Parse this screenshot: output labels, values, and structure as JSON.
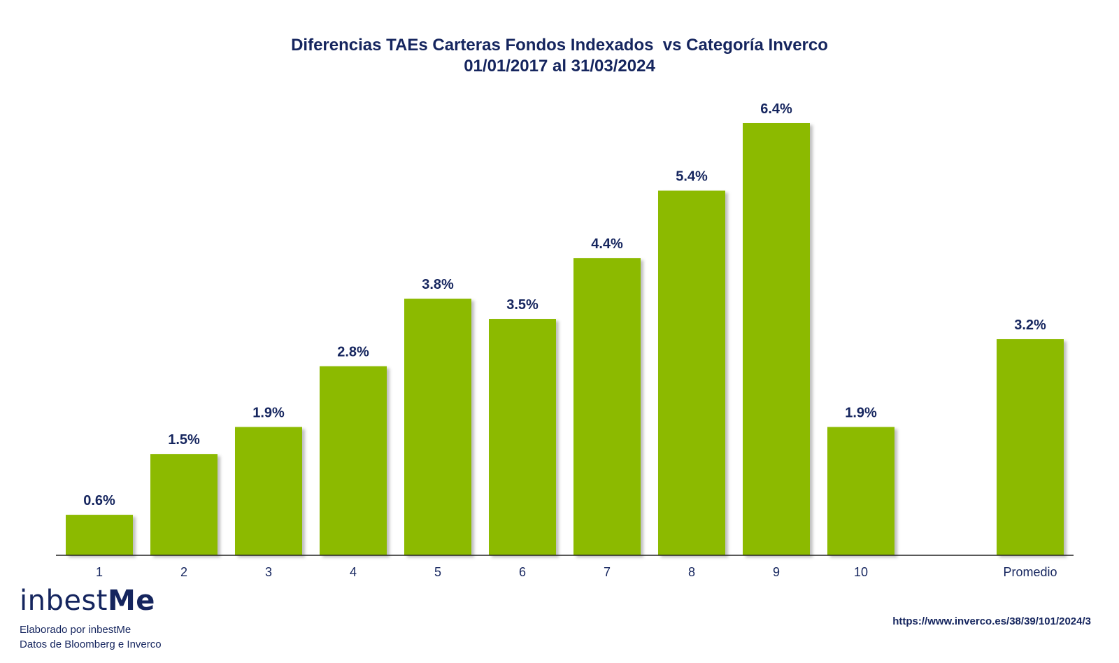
{
  "chart_data": {
    "type": "bar",
    "title": "Diferencias TAEs Carteras Fondos Indexados  vs Categoría Inverco",
    "subtitle": "01/01/2017 al 31/03/2024",
    "categories": [
      "1",
      "2",
      "3",
      "4",
      "5",
      "6",
      "7",
      "8",
      "9",
      "10",
      "Promedio"
    ],
    "values": [
      0.6,
      1.5,
      1.9,
      2.8,
      3.8,
      3.5,
      4.4,
      5.4,
      6.4,
      1.9,
      3.2
    ],
    "data_labels": [
      "0.6%",
      "1.5%",
      "1.9%",
      "2.8%",
      "3.8%",
      "3.5%",
      "4.4%",
      "5.4%",
      "6.4%",
      "1.9%",
      "3.2%"
    ],
    "xlabel": "",
    "ylabel": "",
    "ylim": [
      0,
      6.4
    ],
    "grid": false,
    "legend": "none",
    "colors": {
      "bar": "#8cba00",
      "text": "#15255e",
      "axis": "#222222"
    }
  },
  "branding": {
    "logo_text_a": "inbest",
    "logo_text_b": "Me",
    "credit_line_1": "Elaborado por inbestMe",
    "credit_line_2": "Datos de Bloomberg e Inverco",
    "source_url": "https://www.inverco.es/38/39/101/2024/3"
  }
}
